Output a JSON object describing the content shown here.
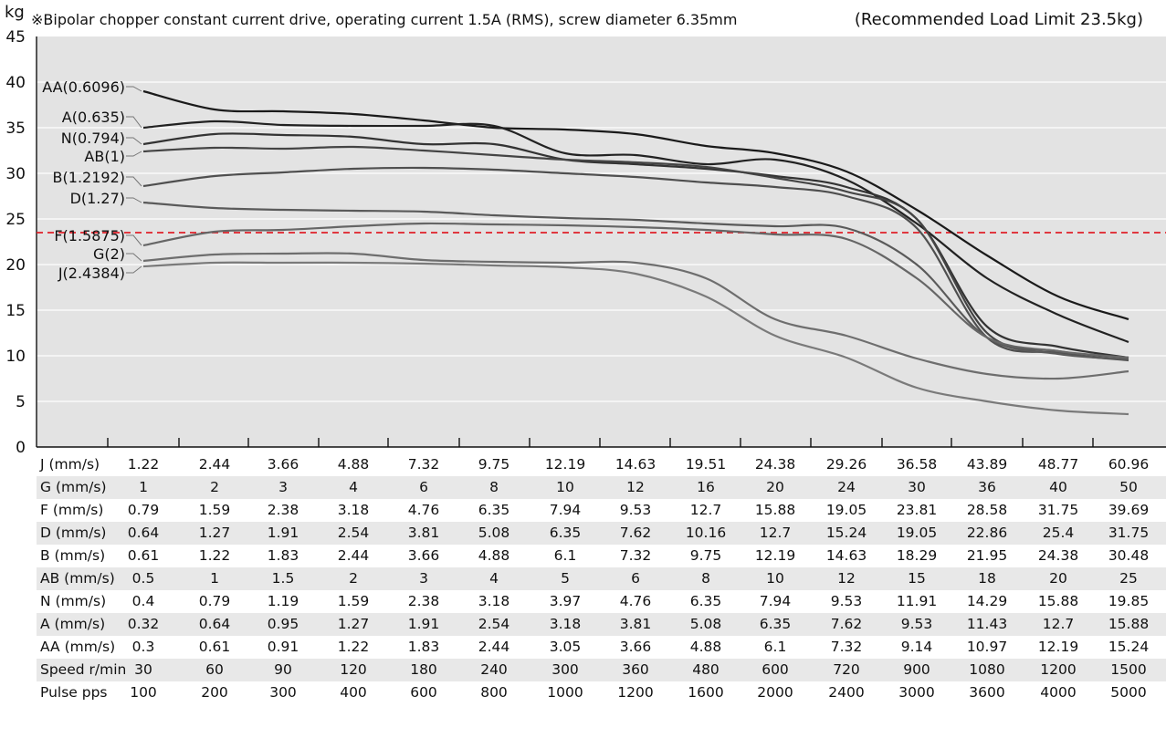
{
  "chart_data": {
    "type": "line",
    "title": "※Bipolar chopper constant current drive, operating current 1.5A (RMS), screw diameter 6.35mm",
    "recommended_label": "(Recommended Load Limit 23.5kg)",
    "ylabel": "kg",
    "ylim": [
      0,
      45
    ],
    "yticks": [
      0,
      5,
      10,
      15,
      20,
      25,
      30,
      35,
      40,
      45
    ],
    "grid": true,
    "recommended_limit": 23.5,
    "limit_color": "#e0202a",
    "background_color": "#e3e3e3",
    "x_index": [
      0,
      1,
      2,
      3,
      4,
      5,
      6,
      7,
      8,
      9,
      10,
      11,
      12,
      13,
      14
    ],
    "series": [
      {
        "name": "AA(0.6096)",
        "color": "#1a1a1a",
        "values": [
          39,
          37,
          36.8,
          36.5,
          35.8,
          35,
          34.8,
          34.3,
          33,
          32.2,
          30.2,
          26,
          21,
          16.5,
          14
        ]
      },
      {
        "name": "A(0.635)",
        "color": "#222222",
        "values": [
          35,
          35.7,
          35.3,
          35.2,
          35.2,
          35.2,
          32.2,
          32,
          31,
          31.5,
          29.3,
          24.5,
          18.5,
          14.5,
          11.5
        ]
      },
      {
        "name": "N(0.794)",
        "color": "#333333",
        "values": [
          33.2,
          34.3,
          34.2,
          34,
          33.2,
          33.2,
          31.5,
          31,
          30.5,
          29.7,
          28.5,
          25,
          13.2,
          11,
          9.8
        ]
      },
      {
        "name": "AB(1)",
        "color": "#444444",
        "values": [
          32.4,
          32.8,
          32.7,
          32.9,
          32.5,
          32,
          31.5,
          31.2,
          30.7,
          29.5,
          28,
          25,
          12.5,
          10.5,
          9.8
        ]
      },
      {
        "name": "B(1.2192)",
        "color": "#4f4f4f",
        "values": [
          28.6,
          29.7,
          30.1,
          30.5,
          30.6,
          30.4,
          30,
          29.6,
          29,
          28.5,
          27.5,
          24,
          12,
          10.3,
          9.5
        ]
      },
      {
        "name": "D(1.27)",
        "color": "#5a5a5a",
        "values": [
          26.8,
          26.2,
          26,
          25.9,
          25.8,
          25.4,
          25.1,
          24.9,
          24.5,
          24.2,
          24,
          20,
          12,
          10.2,
          9.6
        ]
      },
      {
        "name": "F(1.5875)",
        "color": "#666666",
        "values": [
          22.1,
          23.6,
          23.8,
          24.2,
          24.5,
          24.4,
          24.3,
          24.1,
          23.8,
          23.3,
          22.8,
          18.5,
          12,
          10.5,
          9.8
        ]
      },
      {
        "name": "G(2)",
        "color": "#6e6e6e",
        "values": [
          20.4,
          21.1,
          21.2,
          21.2,
          20.5,
          20.3,
          20.2,
          20.2,
          18.5,
          14,
          12.2,
          9.7,
          8,
          7.5,
          8.3
        ]
      },
      {
        "name": "J(2.4384)",
        "color": "#7a7a7a",
        "values": [
          19.8,
          20.2,
          20.2,
          20.2,
          20.1,
          19.9,
          19.7,
          19,
          16.5,
          12.2,
          9.8,
          6.5,
          5,
          4,
          3.6
        ]
      }
    ],
    "table": {
      "rows": [
        {
          "label": "J (mm/s)",
          "values": [
            "1.22",
            "2.44",
            "3.66",
            "4.88",
            "7.32",
            "9.75",
            "12.19",
            "14.63",
            "19.51",
            "24.38",
            "29.26",
            "36.58",
            "43.89",
            "48.77",
            "60.96"
          ]
        },
        {
          "label": "G (mm/s)",
          "values": [
            "1",
            "2",
            "3",
            "4",
            "6",
            "8",
            "10",
            "12",
            "16",
            "20",
            "24",
            "30",
            "36",
            "40",
            "50"
          ]
        },
        {
          "label": "F (mm/s)",
          "values": [
            "0.79",
            "1.59",
            "2.38",
            "3.18",
            "4.76",
            "6.35",
            "7.94",
            "9.53",
            "12.7",
            "15.88",
            "19.05",
            "23.81",
            "28.58",
            "31.75",
            "39.69"
          ]
        },
        {
          "label": "D (mm/s)",
          "values": [
            "0.64",
            "1.27",
            "1.91",
            "2.54",
            "3.81",
            "5.08",
            "6.35",
            "7.62",
            "10.16",
            "12.7",
            "15.24",
            "19.05",
            "22.86",
            "25.4",
            "31.75"
          ]
        },
        {
          "label": "B (mm/s)",
          "values": [
            "0.61",
            "1.22",
            "1.83",
            "2.44",
            "3.66",
            "4.88",
            "6.1",
            "7.32",
            "9.75",
            "12.19",
            "14.63",
            "18.29",
            "21.95",
            "24.38",
            "30.48"
          ]
        },
        {
          "label": "AB (mm/s)",
          "values": [
            "0.5",
            "1",
            "1.5",
            "2",
            "3",
            "4",
            "5",
            "6",
            "8",
            "10",
            "12",
            "15",
            "18",
            "20",
            "25"
          ]
        },
        {
          "label": "N (mm/s)",
          "values": [
            "0.4",
            "0.79",
            "1.19",
            "1.59",
            "2.38",
            "3.18",
            "3.97",
            "4.76",
            "6.35",
            "7.94",
            "9.53",
            "11.91",
            "14.29",
            "15.88",
            "19.85"
          ]
        },
        {
          "label": "A (mm/s)",
          "values": [
            "0.32",
            "0.64",
            "0.95",
            "1.27",
            "1.91",
            "2.54",
            "3.18",
            "3.81",
            "5.08",
            "6.35",
            "7.62",
            "9.53",
            "11.43",
            "12.7",
            "15.88"
          ]
        },
        {
          "label": "AA (mm/s)",
          "values": [
            "0.3",
            "0.61",
            "0.91",
            "1.22",
            "1.83",
            "2.44",
            "3.05",
            "3.66",
            "4.88",
            "6.1",
            "7.32",
            "9.14",
            "10.97",
            "12.19",
            "15.24"
          ]
        },
        {
          "label": "Speed  r/min",
          "values": [
            "30",
            "60",
            "90",
            "120",
            "180",
            "240",
            "300",
            "360",
            "480",
            "600",
            "720",
            "900",
            "1080",
            "1200",
            "1500"
          ]
        },
        {
          "label": "Pulse   pps",
          "values": [
            "100",
            "200",
            "300",
            "400",
            "600",
            "800",
            "1000",
            "1200",
            "1600",
            "2000",
            "2400",
            "3000",
            "3600",
            "4000",
            "5000"
          ]
        }
      ]
    }
  }
}
